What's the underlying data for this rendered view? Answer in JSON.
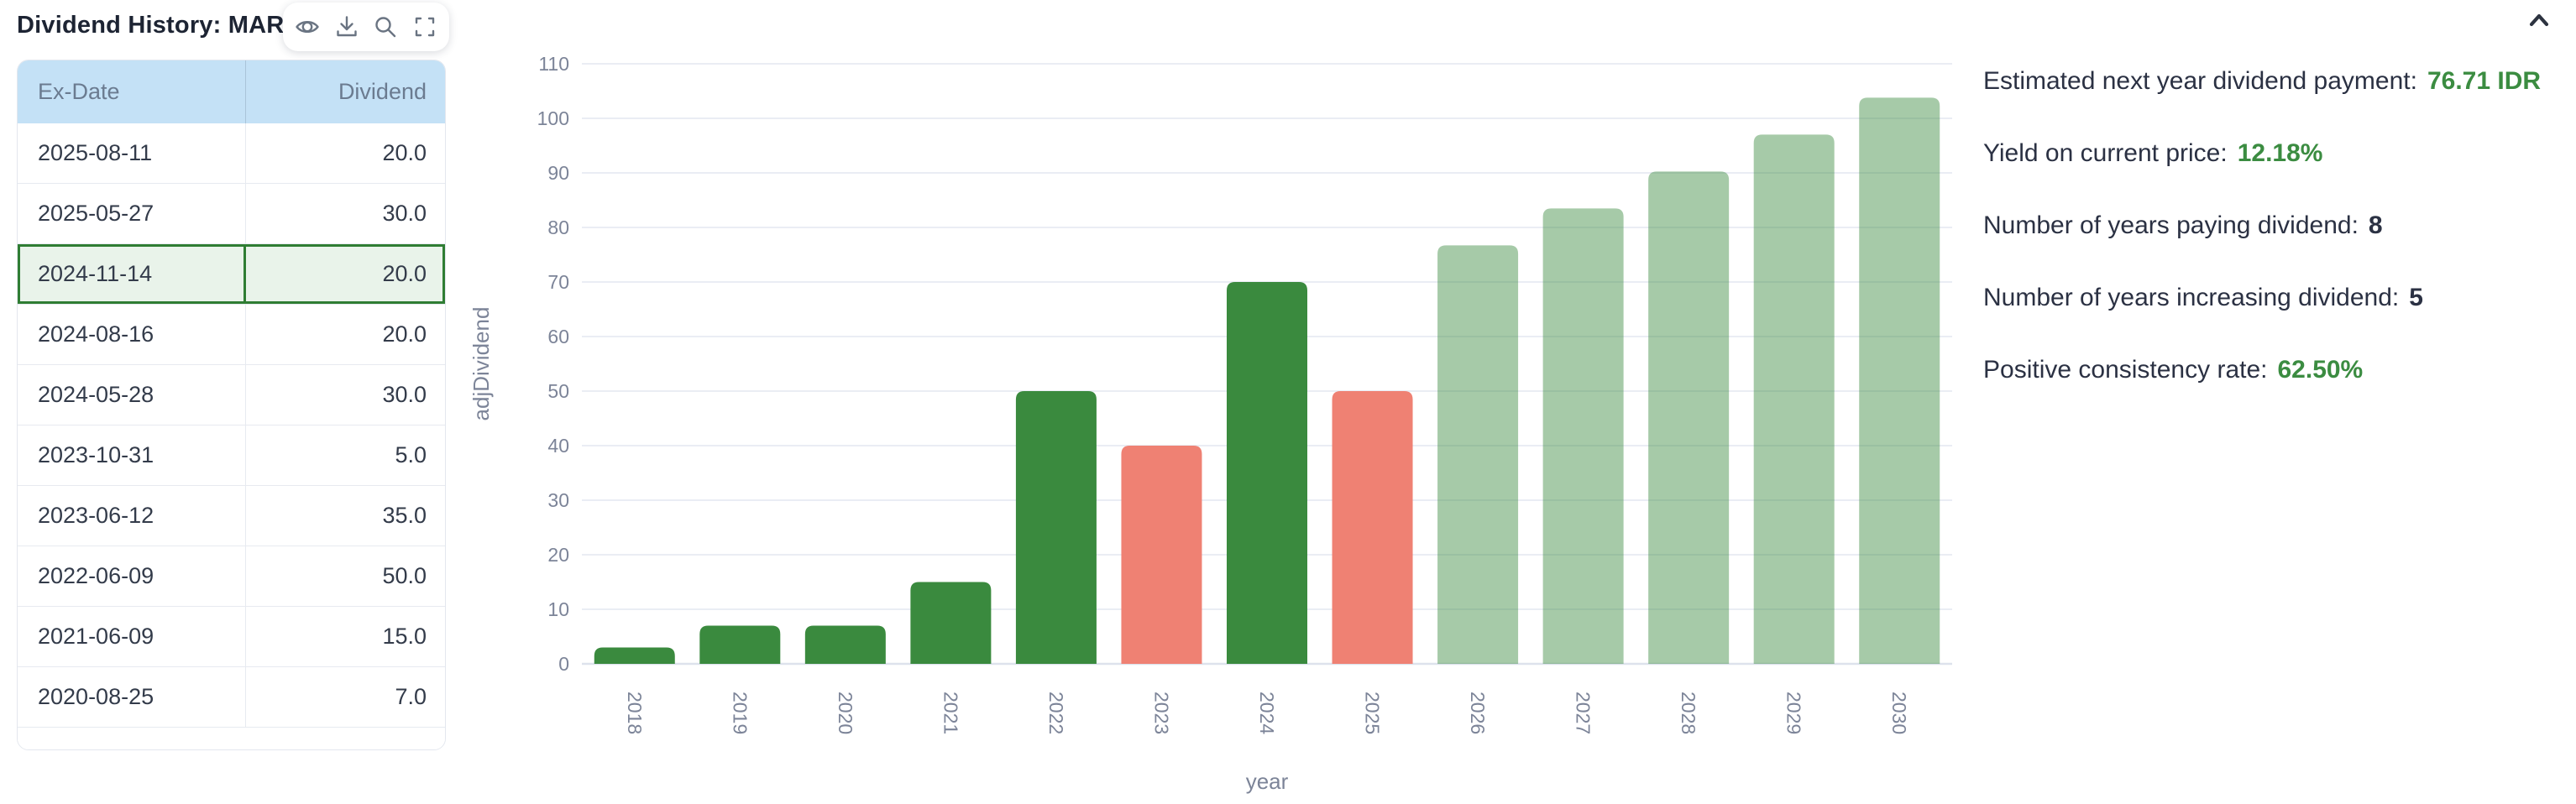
{
  "header": {
    "title": "Dividend History: MARK.JK"
  },
  "toolbar": {
    "icons": [
      "eye",
      "download",
      "zoom",
      "fullscreen"
    ]
  },
  "collapse": {
    "icon": "chevron-up"
  },
  "table": {
    "columns": [
      "Ex-Date",
      "Dividend"
    ],
    "rows": [
      [
        "2025-08-11",
        "20.0"
      ],
      [
        "2025-05-27",
        "30.0"
      ],
      [
        "2024-11-14",
        "20.0"
      ],
      [
        "2024-08-16",
        "20.0"
      ],
      [
        "2024-05-28",
        "30.0"
      ],
      [
        "2023-10-31",
        "5.0"
      ],
      [
        "2023-06-12",
        "35.0"
      ],
      [
        "2022-06-09",
        "50.0"
      ],
      [
        "2021-06-09",
        "15.0"
      ],
      [
        "2020-08-25",
        "7.0"
      ]
    ],
    "selected_row_index": 2
  },
  "chart_data": {
    "type": "bar",
    "categories": [
      "2018",
      "2019",
      "2020",
      "2021",
      "2022",
      "2023",
      "2024",
      "2025",
      "2026",
      "2027",
      "2028",
      "2029",
      "2030"
    ],
    "values": [
      3,
      7,
      7,
      15,
      50,
      40,
      70,
      50,
      76.71,
      83.48,
      90.25,
      97.02,
      103.79
    ],
    "bar_kinds": [
      "up",
      "up",
      "up",
      "up",
      "up",
      "down",
      "up",
      "down",
      "forecast",
      "forecast",
      "forecast",
      "forecast",
      "forecast"
    ],
    "title": "",
    "xlabel": "year",
    "ylabel": "adjDividend",
    "ylim": [
      0,
      110
    ],
    "ytick_step": 10,
    "grid": true,
    "legend": "none"
  },
  "stats": {
    "lines": [
      {
        "label": "Estimated next year dividend payment:",
        "value": "76.71 IDR",
        "value_style": "green"
      },
      {
        "label": "Yield on current price:",
        "value": "12.18%",
        "value_style": "green"
      },
      {
        "label": "Number of years paying dividend:",
        "value": "8",
        "value_style": "dark"
      },
      {
        "label": "Number of years increasing dividend:",
        "value": "5",
        "value_style": "dark"
      },
      {
        "label": "Positive consistency rate:",
        "value": "62.50%",
        "value_style": "green"
      }
    ]
  },
  "colors": {
    "bar_up": "#3a8a3e",
    "bar_down": "#ef8173",
    "bar_forecast_base": "#3a8a3e",
    "bar_forecast_opacity": 0.45,
    "gridline": "#eaedf4",
    "axis_line": "#dde2ec",
    "tick_text": "#7c8498",
    "axis_title_text": "#7c8498",
    "selected_row_border": "#2f7d33",
    "selected_row_bg": "#e9f3ea",
    "table_header_bg": "#c4e1f6",
    "green_value_text": "#3b8c41"
  }
}
